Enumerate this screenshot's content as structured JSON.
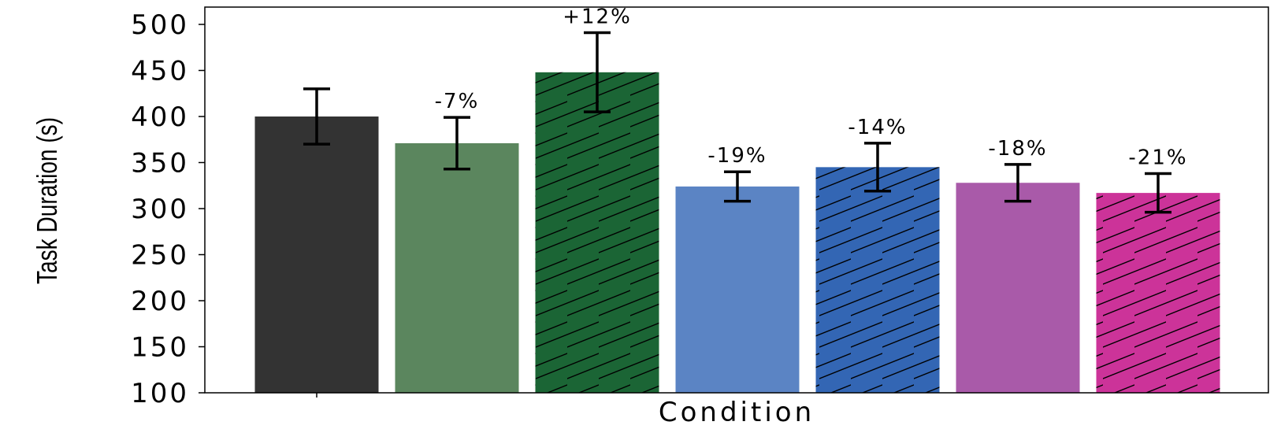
{
  "chart_data": {
    "type": "bar",
    "title": "",
    "xlabel": "Condition",
    "ylabel": "Task Duration (s)",
    "ylim": [
      100,
      500
    ],
    "yticks": [
      100,
      150,
      200,
      250,
      300,
      350,
      400,
      450,
      500
    ],
    "grid": false,
    "legend": "none",
    "bars": [
      {
        "value": 400,
        "error": 30,
        "label": "",
        "color": "#333333",
        "hatch": false
      },
      {
        "value": 371,
        "error": 28,
        "label": "-7%",
        "color": "#5b865e",
        "hatch": false
      },
      {
        "value": 448,
        "error": 43,
        "label": "+12%",
        "color": "#1b6535",
        "hatch": true
      },
      {
        "value": 324,
        "error": 16,
        "label": "-19%",
        "color": "#5b84c4",
        "hatch": false
      },
      {
        "value": 345,
        "error": 26,
        "label": "-14%",
        "color": "#3366b4",
        "hatch": true
      },
      {
        "value": 328,
        "error": 20,
        "label": "-18%",
        "color": "#a95aa9",
        "hatch": false
      },
      {
        "value": 317,
        "error": 21,
        "label": "-21%",
        "color": "#cc3399",
        "hatch": true
      }
    ]
  }
}
